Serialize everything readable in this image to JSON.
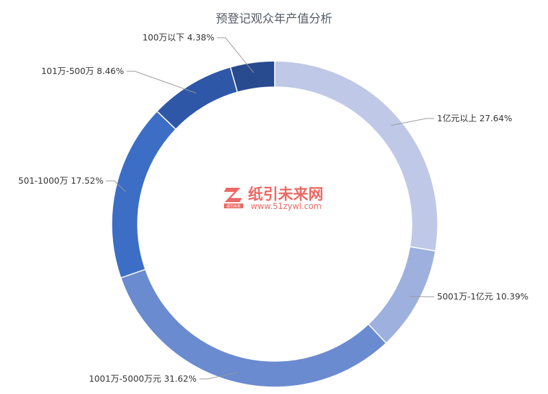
{
  "chart_data": {
    "type": "pie",
    "title": "预登记观众年产值分析",
    "slices": [
      {
        "label": "1亿元以上 27.64%",
        "value": 27.64,
        "color": "#bfc8e6"
      },
      {
        "label": "5001万-1亿元 10.39%",
        "value": 10.39,
        "color": "#9eb0de"
      },
      {
        "label": "1001万-5000万元 31.62%",
        "value": 31.62,
        "color": "#6b8bd0"
      },
      {
        "label": "501-1000万 17.52%",
        "value": 17.52,
        "color": "#3d6ec6"
      },
      {
        "label": "101万-500万 8.46%",
        "value": 8.46,
        "color": "#2f57a8"
      },
      {
        "label": "100万以下 4.38%",
        "value": 4.38,
        "color": "#284a8f"
      }
    ]
  },
  "watermark": {
    "text": "纸引未来网",
    "url": "www.51zywl.com",
    "badge": "纸引未来"
  }
}
